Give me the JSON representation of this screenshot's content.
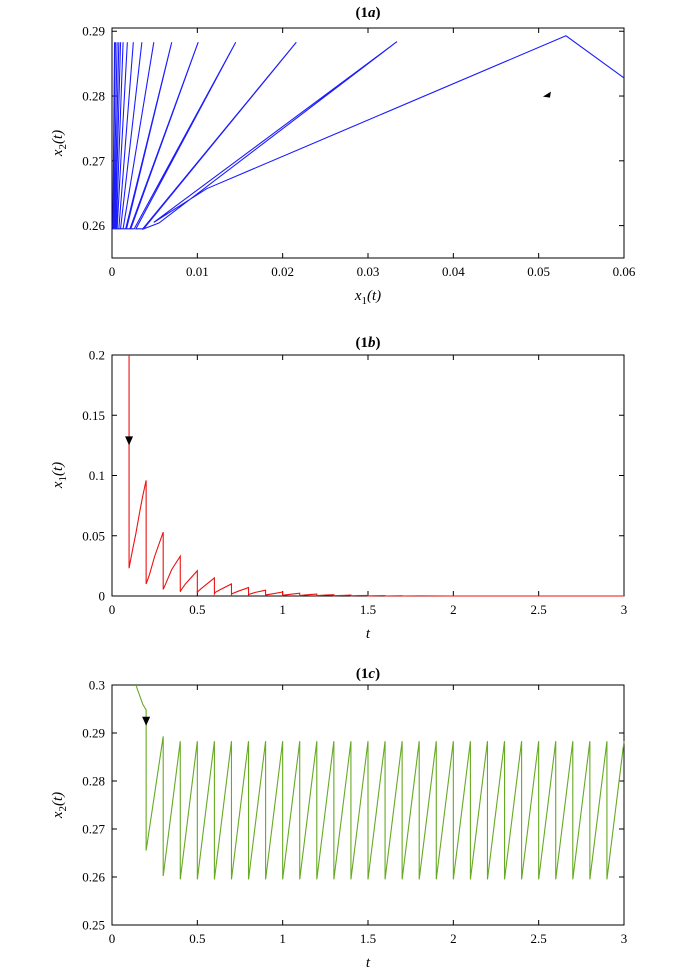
{
  "chart_data": [
    {
      "type": "line",
      "title": "(1a)",
      "title_parts": {
        "open": "(",
        "num": "1",
        "letter": "a",
        "close": ")"
      },
      "xlabel": {
        "main": "x",
        "sub": "1",
        "arg": "(t)"
      },
      "ylabel": {
        "main": "x",
        "sub": "2",
        "arg": "(t)"
      },
      "xlim": [
        0,
        0.06
      ],
      "ylim": [
        0.255,
        0.2905
      ],
      "xticks": [
        "0",
        "0.01",
        "0.02",
        "0.03",
        "0.04",
        "0.05",
        "0.06"
      ],
      "xtick_values": [
        0,
        0.01,
        0.02,
        0.03,
        0.04,
        0.05,
        0.06
      ],
      "yticks": [
        "0.26",
        "0.27",
        "0.28",
        "0.29"
      ],
      "ytick_values": [
        0.26,
        0.27,
        0.28,
        0.29
      ],
      "color": "#1c1cff",
      "arrow_at": [
        0.0505,
        0.2799
      ],
      "series": [
        {
          "description": "phase portrait trajectory",
          "x": [
            0.06,
            0.0532,
            0.0111,
            0.0049,
            0.0334,
            0.0055,
            0.0037,
            0.0216,
            0.0036,
            0.0028,
            0.0145,
            0.0026,
            0.0022,
            0.0101,
            0.0021,
            0.0017,
            0.007,
            0.0016,
            0.0013,
            0.0049,
            0.0013,
            0.001,
            0.0035,
            0.001,
            0.0008,
            0.0025,
            0.0008,
            0.0006,
            0.0018,
            0.0006,
            0.0005,
            0.0013,
            0.0005,
            0.0004,
            0.001,
            0.0004,
            0.0003,
            0.0008,
            0.0003,
            0.0002,
            0.0006,
            0.0002,
            0.0001,
            0.0004,
            0.0001,
            0.0001,
            0.0003,
            0.0001
          ],
          "y": [
            0.2828,
            0.2893,
            0.2657,
            0.2605,
            0.2884,
            0.2604,
            0.2595,
            0.2883,
            0.2595,
            0.2595,
            0.2883,
            0.2595,
            0.2595,
            0.2883,
            0.2595,
            0.2595,
            0.2883,
            0.2595,
            0.2595,
            0.2883,
            0.2595,
            0.2595,
            0.2883,
            0.2595,
            0.2595,
            0.2883,
            0.2595,
            0.2595,
            0.2883,
            0.2595,
            0.2595,
            0.2883,
            0.2595,
            0.2595,
            0.2883,
            0.2595,
            0.2595,
            0.2883,
            0.2595,
            0.2595,
            0.2883,
            0.2595,
            0.2595,
            0.2883,
            0.2595,
            0.2595,
            0.2883,
            0.2595
          ]
        }
      ]
    },
    {
      "type": "line",
      "title": "(1b)",
      "title_parts": {
        "open": "(",
        "num": "1",
        "letter": "b",
        "close": ")"
      },
      "xlabel": {
        "main": "t",
        "sub": "",
        "arg": ""
      },
      "ylabel": {
        "main": "x",
        "sub": "1",
        "arg": "(t)"
      },
      "xlim": [
        0,
        3
      ],
      "ylim": [
        0,
        0.2
      ],
      "xticks": [
        "0",
        "0.5",
        "1",
        "1.5",
        "2",
        "2.5",
        "3"
      ],
      "xtick_values": [
        0,
        0.5,
        1,
        1.5,
        2,
        2.5,
        3
      ],
      "yticks": [
        "0",
        "0.05",
        "0.1",
        "0.15",
        "0.2"
      ],
      "ytick_values": [
        0,
        0.05,
        0.1,
        0.15,
        0.2
      ],
      "color": "#ee1111",
      "arrow_at": [
        0.1,
        0.125
      ],
      "series": [
        {
          "description": "x1 over time with impulsive jumps every 0.1",
          "x": [
            0.1,
            0.1,
            0.105,
            0.12,
            0.14,
            0.16,
            0.18,
            0.2,
            0.2,
            0.205,
            0.22,
            0.25,
            0.3,
            0.3,
            0.305,
            0.32,
            0.35,
            0.4,
            0.4,
            0.405,
            0.43,
            0.5,
            0.5,
            0.505,
            0.53,
            0.6,
            0.6,
            0.605,
            0.63,
            0.7,
            0.7,
            0.705,
            0.74,
            0.8,
            0.8,
            0.805,
            0.84,
            0.9,
            0.9,
            0.905,
            0.95,
            1.0,
            1.0,
            1.005,
            1.05,
            1.1,
            1.1,
            1.105,
            1.15,
            1.2,
            1.2,
            1.205,
            1.25,
            1.3,
            1.3,
            1.305,
            1.35,
            1.4,
            1.4,
            1.405,
            1.45,
            1.5,
            1.5,
            1.6,
            1.6,
            1.7,
            1.7,
            1.8,
            2.0,
            2.5,
            3.0
          ],
          "y": [
            0.2,
            0.023,
            0.027,
            0.038,
            0.052,
            0.068,
            0.083,
            0.096,
            0.01,
            0.012,
            0.018,
            0.033,
            0.053,
            0.0055,
            0.007,
            0.012,
            0.022,
            0.033,
            0.0035,
            0.005,
            0.01,
            0.021,
            0.0025,
            0.004,
            0.007,
            0.015,
            0.0018,
            0.003,
            0.005,
            0.01,
            0.0013,
            0.002,
            0.004,
            0.007,
            0.0009,
            0.0015,
            0.003,
            0.0048,
            0.0006,
            0.001,
            0.002,
            0.0033,
            0.0004,
            0.0007,
            0.0015,
            0.0023,
            0.0003,
            0.0005,
            0.0011,
            0.0016,
            0.0002,
            0.0004,
            0.0008,
            0.0011,
            0.0001,
            0.0003,
            0.0005,
            0.0008,
            0.0001,
            0.0002,
            0.0004,
            0.0005,
            0.0001,
            0.0003,
            0.0,
            0.0002,
            0.0,
            0.0001,
            0.0,
            0.0,
            0.0
          ]
        }
      ]
    },
    {
      "type": "line",
      "title": "(1c)",
      "title_parts": {
        "open": "(",
        "num": "1",
        "letter": "c",
        "close": ")"
      },
      "xlabel": {
        "main": "t",
        "sub": "",
        "arg": ""
      },
      "ylabel": {
        "main": "x",
        "sub": "2",
        "arg": "(t)"
      },
      "xlim": [
        0,
        3
      ],
      "ylim": [
        0.25,
        0.3
      ],
      "xticks": [
        "0",
        "0.5",
        "1",
        "1.5",
        "2",
        "2.5",
        "3"
      ],
      "xtick_values": [
        0,
        0.5,
        1,
        1.5,
        2,
        2.5,
        3
      ],
      "yticks": [
        "0.25",
        "0.26",
        "0.27",
        "0.28",
        "0.29",
        "0.3"
      ],
      "ytick_values": [
        0.25,
        0.26,
        0.27,
        0.28,
        0.29,
        0.3
      ],
      "color": "#66aa22",
      "arrow_at": [
        0.2,
        0.2915
      ],
      "series": [
        {
          "description": "x2 over time: initial decay then periodic sawtooth (period 0.1, min 0.2595, max 0.2883)",
          "x": [
            0.14,
            0.16,
            0.18,
            0.2,
            0.2,
            0.3,
            0.3,
            0.4,
            0.4,
            0.5,
            0.5,
            0.6,
            0.6,
            0.7,
            0.7,
            0.8,
            0.8,
            0.9,
            0.9,
            1.0,
            1.0,
            1.1,
            1.1,
            1.2,
            1.2,
            1.3,
            1.3,
            1.4,
            1.4,
            1.5,
            1.5,
            1.6,
            1.6,
            1.7,
            1.7,
            1.8,
            1.8,
            1.9,
            1.9,
            2.0,
            2.0,
            2.1,
            2.1,
            2.2,
            2.2,
            2.3,
            2.3,
            2.4,
            2.4,
            2.5,
            2.5,
            2.6,
            2.6,
            2.7,
            2.7,
            2.8,
            2.8,
            2.9,
            2.9,
            3.0
          ],
          "y": [
            0.3,
            0.298,
            0.296,
            0.2948,
            0.2655,
            0.2893,
            0.2602,
            0.2883,
            0.2595,
            0.2883,
            0.2595,
            0.2883,
            0.2595,
            0.2883,
            0.2595,
            0.2883,
            0.2595,
            0.2883,
            0.2595,
            0.2883,
            0.2595,
            0.2883,
            0.2595,
            0.2883,
            0.2595,
            0.2883,
            0.2595,
            0.2883,
            0.2595,
            0.2883,
            0.2595,
            0.2883,
            0.2595,
            0.2883,
            0.2595,
            0.2883,
            0.2595,
            0.2883,
            0.2595,
            0.2883,
            0.2595,
            0.2883,
            0.2595,
            0.2883,
            0.2595,
            0.2883,
            0.2595,
            0.2883,
            0.2595,
            0.2883,
            0.2595,
            0.2883,
            0.2595,
            0.2883,
            0.2595,
            0.2883,
            0.2595,
            0.2883,
            0.2595,
            0.2883
          ]
        }
      ]
    }
  ]
}
